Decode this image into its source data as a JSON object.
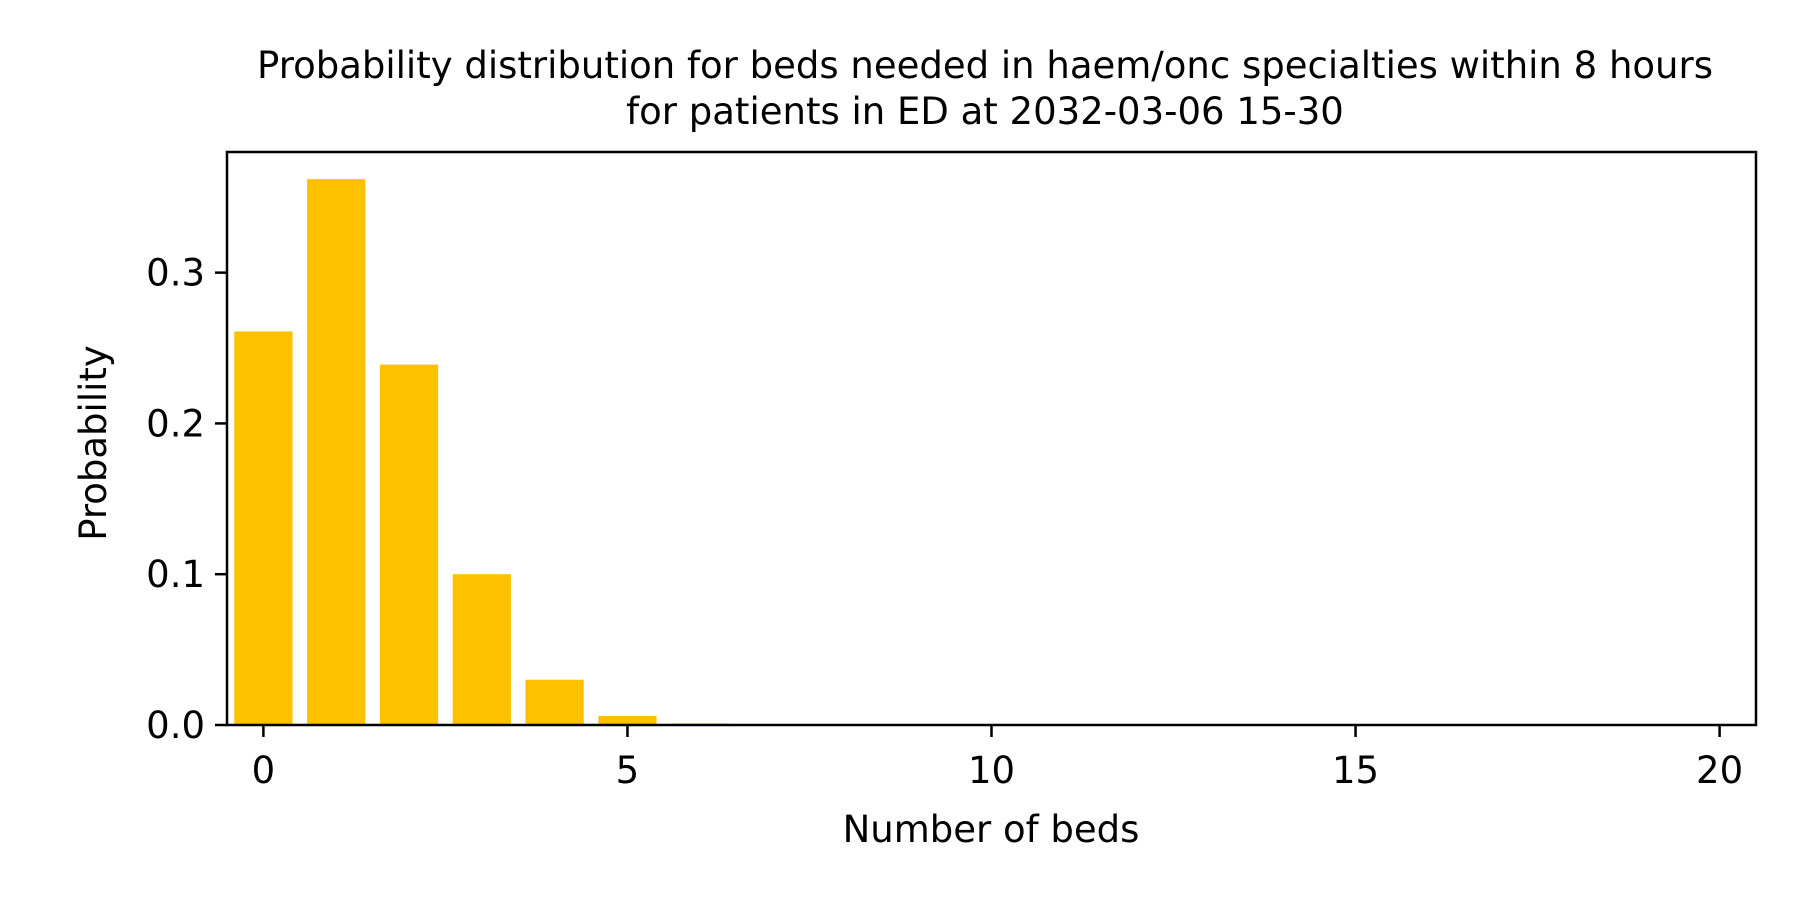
{
  "chart_data": {
    "type": "bar",
    "title_line1": "Probability distribution for beds needed in haem/onc specialties within 8 hours",
    "title_line2": "for patients in ED at 2032-03-06 15-30",
    "xlabel": "Number of beds",
    "ylabel": "Probability",
    "x": [
      0,
      1,
      2,
      3,
      4,
      5,
      6,
      7,
      8,
      9,
      10,
      11,
      12,
      13,
      14,
      15,
      16,
      17,
      18,
      19,
      20
    ],
    "values": [
      0.261,
      0.362,
      0.239,
      0.1,
      0.03,
      0.006,
      0.001,
      0,
      0,
      0,
      0,
      0,
      0,
      0,
      0,
      0,
      0,
      0,
      0,
      0,
      0
    ],
    "xlim": [
      -0.5,
      20.5
    ],
    "ylim": [
      0,
      0.38
    ],
    "xticks": [
      0,
      5,
      10,
      15,
      20
    ],
    "xtick_labels": [
      "0",
      "5",
      "10",
      "15",
      "20"
    ],
    "yticks": [
      0.0,
      0.1,
      0.2,
      0.3
    ],
    "ytick_labels": [
      "0.0",
      "0.1",
      "0.2",
      "0.3"
    ],
    "bar_color": "#fdc100",
    "grid": false,
    "legend": "none"
  }
}
